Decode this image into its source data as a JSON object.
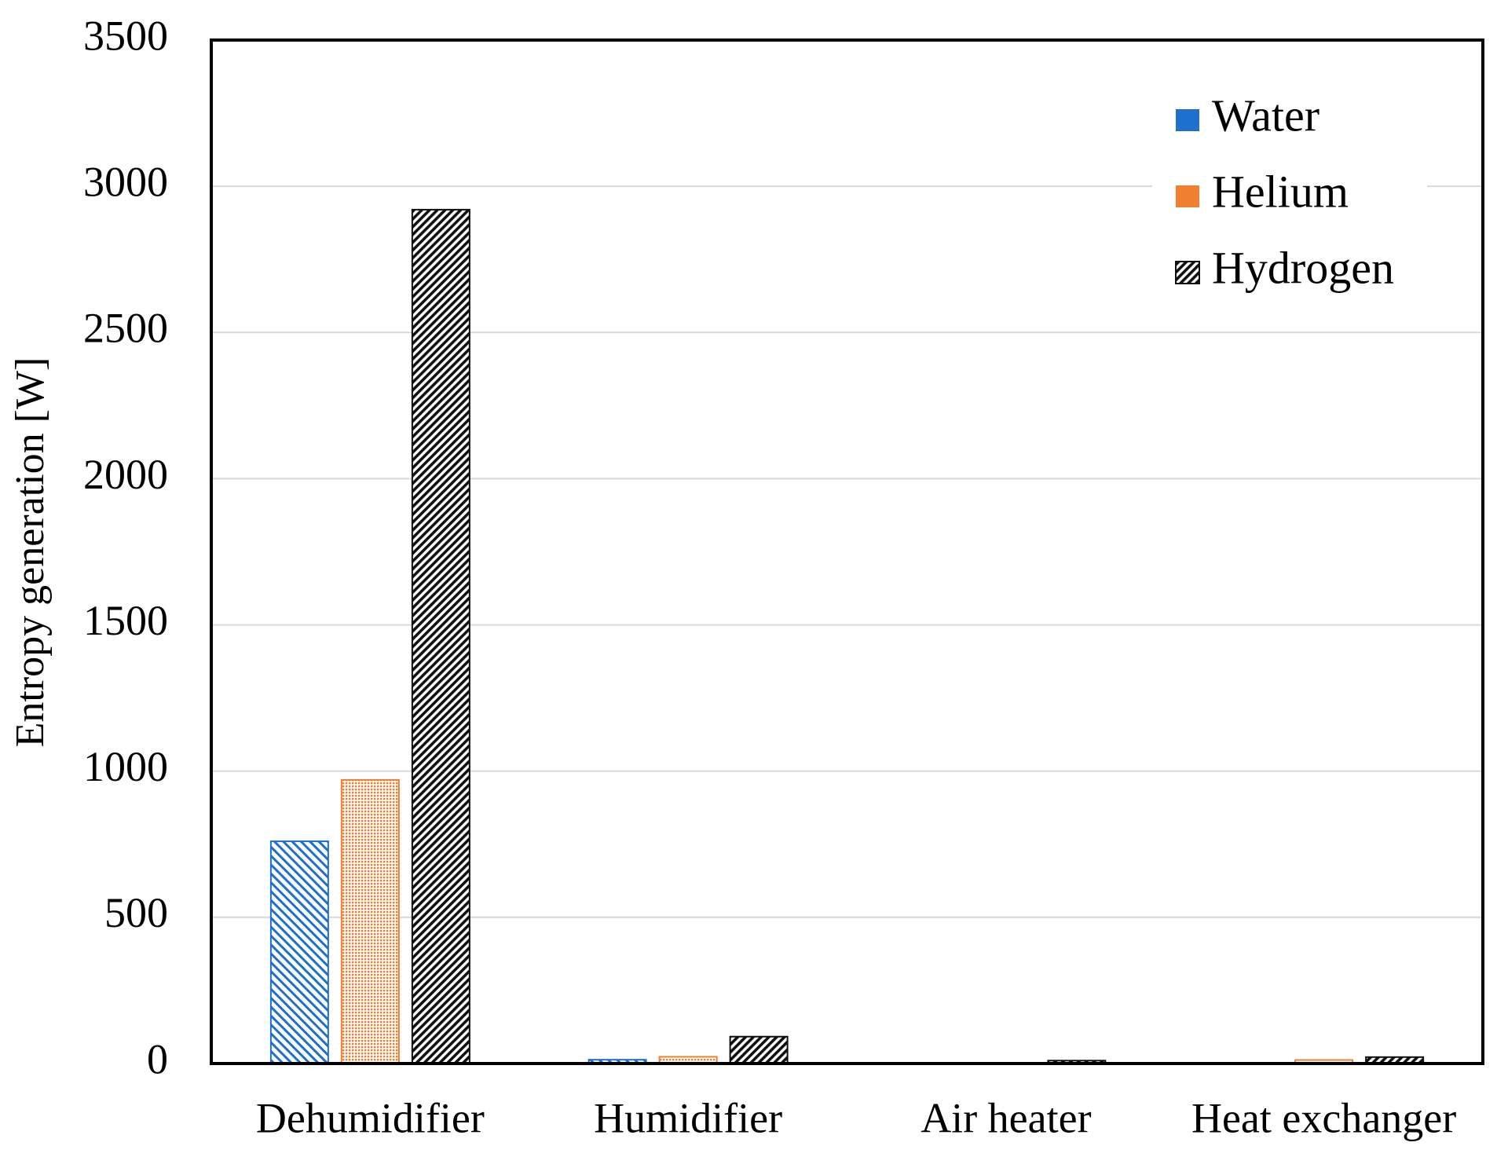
{
  "chart_data": {
    "type": "bar",
    "y_label": "Entropy generation [W]",
    "categories": [
      "Dehumidifier",
      "Humidifier",
      "Air heater",
      "Heat exchanger"
    ],
    "series": [
      {
        "name": "Water",
        "color": "#1f6fcf",
        "fill_style": "hatch",
        "values": [
          760,
          13,
          0,
          0
        ]
      },
      {
        "name": "Helium",
        "color": "#f08030",
        "fill_style": "dots",
        "values": [
          970,
          23,
          0,
          12
        ]
      },
      {
        "name": "Hydrogen",
        "color": "#111111",
        "fill_style": "hatch-dense",
        "values": [
          2920,
          92,
          10,
          22
        ]
      }
    ],
    "ylim": [
      0,
      3500
    ],
    "yticks": [
      0,
      500,
      1000,
      1500,
      2000,
      2500,
      3000,
      3500
    ],
    "grid": true,
    "legend": "upper right"
  }
}
